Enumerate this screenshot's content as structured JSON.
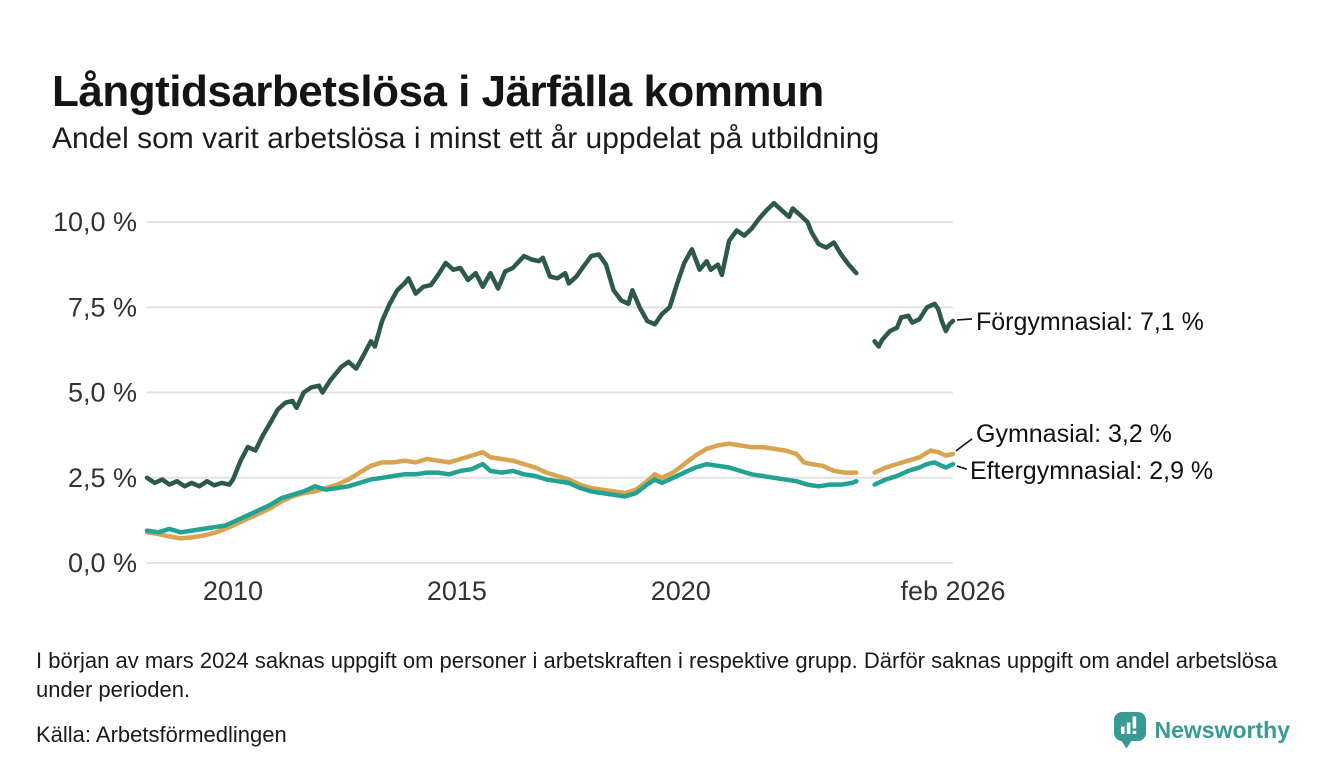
{
  "header": {
    "title": "Långtidsarbetslösa i Järfälla kommun",
    "subtitle": "Andel som varit arbetslösa i minst ett år uppdelat på utbildning"
  },
  "chart_data": {
    "type": "line",
    "title": "Långtidsarbetslösa i Järfälla kommun",
    "subtitle": "Andel som varit arbetslösa i minst ett år uppdelat på utbildning",
    "unit": "%",
    "grid": true,
    "legend_position": "right-end-labels",
    "x_range": [
      2008.08,
      2026.08
    ],
    "ylim": [
      0,
      10.7
    ],
    "y_ticks": [
      {
        "value": 10.0,
        "label": "10,0 %"
      },
      {
        "value": 7.5,
        "label": "7,5 %"
      },
      {
        "value": 5.0,
        "label": "5,0 %"
      },
      {
        "value": 2.5,
        "label": "2,5 %"
      },
      {
        "value": 0.0,
        "label": "0,0 %"
      }
    ],
    "x_ticks": [
      {
        "year": 2010,
        "label": "2010"
      },
      {
        "year": 2015,
        "label": "2015"
      },
      {
        "year": 2020,
        "label": "2020"
      },
      {
        "year": 2026.08,
        "label": "feb 2026"
      }
    ],
    "data_gap": "mars 2024",
    "series": [
      {
        "name": "Förgymnasial",
        "end_label": "Förgymnasial: 7,1 %",
        "end_value_pct": 7.1,
        "color": "#2d594b",
        "points": [
          [
            2008.08,
            2.5
          ],
          [
            2008.25,
            2.35
          ],
          [
            2008.42,
            2.45
          ],
          [
            2008.58,
            2.3
          ],
          [
            2008.75,
            2.4
          ],
          [
            2008.92,
            2.25
          ],
          [
            2009.08,
            2.35
          ],
          [
            2009.25,
            2.25
          ],
          [
            2009.42,
            2.4
          ],
          [
            2009.58,
            2.28
          ],
          [
            2009.75,
            2.35
          ],
          [
            2009.92,
            2.3
          ],
          [
            2010.0,
            2.45
          ],
          [
            2010.17,
            3.0
          ],
          [
            2010.33,
            3.4
          ],
          [
            2010.5,
            3.3
          ],
          [
            2010.67,
            3.75
          ],
          [
            2010.83,
            4.1
          ],
          [
            2011.0,
            4.5
          ],
          [
            2011.17,
            4.7
          ],
          [
            2011.33,
            4.75
          ],
          [
            2011.42,
            4.55
          ],
          [
            2011.58,
            5.0
          ],
          [
            2011.75,
            5.15
          ],
          [
            2011.92,
            5.2
          ],
          [
            2012.0,
            5.0
          ],
          [
            2012.17,
            5.35
          ],
          [
            2012.42,
            5.75
          ],
          [
            2012.58,
            5.9
          ],
          [
            2012.75,
            5.7
          ],
          [
            2012.92,
            6.1
          ],
          [
            2013.08,
            6.5
          ],
          [
            2013.17,
            6.35
          ],
          [
            2013.33,
            7.1
          ],
          [
            2013.5,
            7.6
          ],
          [
            2013.67,
            8.0
          ],
          [
            2013.83,
            8.2
          ],
          [
            2013.92,
            8.35
          ],
          [
            2014.08,
            7.9
          ],
          [
            2014.25,
            8.1
          ],
          [
            2014.42,
            8.15
          ],
          [
            2014.58,
            8.45
          ],
          [
            2014.75,
            8.8
          ],
          [
            2014.92,
            8.6
          ],
          [
            2015.08,
            8.65
          ],
          [
            2015.25,
            8.3
          ],
          [
            2015.42,
            8.5
          ],
          [
            2015.58,
            8.1
          ],
          [
            2015.75,
            8.5
          ],
          [
            2015.92,
            8.05
          ],
          [
            2016.08,
            8.55
          ],
          [
            2016.25,
            8.65
          ],
          [
            2016.5,
            9.0
          ],
          [
            2016.67,
            8.9
          ],
          [
            2016.83,
            8.85
          ],
          [
            2016.92,
            8.95
          ],
          [
            2017.08,
            8.4
          ],
          [
            2017.25,
            8.35
          ],
          [
            2017.42,
            8.5
          ],
          [
            2017.5,
            8.2
          ],
          [
            2017.67,
            8.4
          ],
          [
            2017.83,
            8.7
          ],
          [
            2018.0,
            9.0
          ],
          [
            2018.17,
            9.05
          ],
          [
            2018.33,
            8.75
          ],
          [
            2018.5,
            8.0
          ],
          [
            2018.67,
            7.7
          ],
          [
            2018.83,
            7.6
          ],
          [
            2018.92,
            8.0
          ],
          [
            2019.08,
            7.5
          ],
          [
            2019.25,
            7.1
          ],
          [
            2019.42,
            7.0
          ],
          [
            2019.58,
            7.3
          ],
          [
            2019.75,
            7.5
          ],
          [
            2019.92,
            8.2
          ],
          [
            2020.08,
            8.8
          ],
          [
            2020.25,
            9.2
          ],
          [
            2020.42,
            8.6
          ],
          [
            2020.58,
            8.85
          ],
          [
            2020.67,
            8.6
          ],
          [
            2020.83,
            8.75
          ],
          [
            2020.92,
            8.45
          ],
          [
            2021.08,
            9.45
          ],
          [
            2021.25,
            9.75
          ],
          [
            2021.42,
            9.6
          ],
          [
            2021.58,
            9.8
          ],
          [
            2021.75,
            10.1
          ],
          [
            2021.92,
            10.35
          ],
          [
            2022.08,
            10.55
          ],
          [
            2022.25,
            10.35
          ],
          [
            2022.42,
            10.15
          ],
          [
            2022.5,
            10.4
          ],
          [
            2022.67,
            10.2
          ],
          [
            2022.83,
            10.0
          ],
          [
            2022.92,
            9.7
          ],
          [
            2023.08,
            9.35
          ],
          [
            2023.25,
            9.25
          ],
          [
            2023.42,
            9.4
          ],
          [
            2023.58,
            9.05
          ],
          [
            2023.75,
            8.75
          ],
          [
            2023.92,
            8.5
          ],
          null,
          [
            2024.33,
            6.5
          ],
          [
            2024.42,
            6.35
          ],
          [
            2024.5,
            6.55
          ],
          [
            2024.67,
            6.8
          ],
          [
            2024.83,
            6.9
          ],
          [
            2024.92,
            7.2
          ],
          [
            2025.08,
            7.25
          ],
          [
            2025.17,
            7.05
          ],
          [
            2025.33,
            7.15
          ],
          [
            2025.5,
            7.5
          ],
          [
            2025.67,
            7.6
          ],
          [
            2025.75,
            7.45
          ],
          [
            2025.83,
            7.1
          ],
          [
            2025.92,
            6.8
          ],
          [
            2026.0,
            7.0
          ],
          [
            2026.08,
            7.1
          ]
        ]
      },
      {
        "name": "Gymnasial",
        "end_label": "Gymnasial: 3,2 %",
        "end_value_pct": 3.2,
        "color": "#d8a44f",
        "points": [
          [
            2008.08,
            0.9
          ],
          [
            2008.33,
            0.85
          ],
          [
            2008.58,
            0.78
          ],
          [
            2008.83,
            0.72
          ],
          [
            2009.08,
            0.75
          ],
          [
            2009.33,
            0.8
          ],
          [
            2009.58,
            0.88
          ],
          [
            2009.83,
            1.0
          ],
          [
            2010.08,
            1.15
          ],
          [
            2010.33,
            1.3
          ],
          [
            2010.58,
            1.45
          ],
          [
            2010.83,
            1.6
          ],
          [
            2011.08,
            1.8
          ],
          [
            2011.33,
            1.95
          ],
          [
            2011.58,
            2.05
          ],
          [
            2011.83,
            2.1
          ],
          [
            2012.08,
            2.2
          ],
          [
            2012.33,
            2.3
          ],
          [
            2012.58,
            2.45
          ],
          [
            2012.83,
            2.65
          ],
          [
            2013.08,
            2.85
          ],
          [
            2013.33,
            2.95
          ],
          [
            2013.58,
            2.95
          ],
          [
            2013.83,
            3.0
          ],
          [
            2014.08,
            2.95
          ],
          [
            2014.33,
            3.05
          ],
          [
            2014.58,
            3.0
          ],
          [
            2014.83,
            2.95
          ],
          [
            2015.08,
            3.05
          ],
          [
            2015.33,
            3.15
          ],
          [
            2015.58,
            3.25
          ],
          [
            2015.75,
            3.1
          ],
          [
            2016.0,
            3.05
          ],
          [
            2016.25,
            3.0
          ],
          [
            2016.5,
            2.9
          ],
          [
            2016.75,
            2.8
          ],
          [
            2017.0,
            2.65
          ],
          [
            2017.25,
            2.55
          ],
          [
            2017.5,
            2.45
          ],
          [
            2017.75,
            2.3
          ],
          [
            2018.0,
            2.2
          ],
          [
            2018.25,
            2.15
          ],
          [
            2018.5,
            2.1
          ],
          [
            2018.75,
            2.05
          ],
          [
            2019.0,
            2.15
          ],
          [
            2019.25,
            2.4
          ],
          [
            2019.42,
            2.6
          ],
          [
            2019.58,
            2.5
          ],
          [
            2019.83,
            2.65
          ],
          [
            2020.08,
            2.9
          ],
          [
            2020.33,
            3.15
          ],
          [
            2020.58,
            3.35
          ],
          [
            2020.83,
            3.45
          ],
          [
            2021.08,
            3.5
          ],
          [
            2021.33,
            3.45
          ],
          [
            2021.58,
            3.4
          ],
          [
            2021.83,
            3.4
          ],
          [
            2022.08,
            3.35
          ],
          [
            2022.33,
            3.3
          ],
          [
            2022.58,
            3.2
          ],
          [
            2022.75,
            2.95
          ],
          [
            2022.92,
            2.9
          ],
          [
            2023.17,
            2.85
          ],
          [
            2023.42,
            2.7
          ],
          [
            2023.67,
            2.65
          ],
          [
            2023.92,
            2.65
          ],
          null,
          [
            2024.33,
            2.65
          ],
          [
            2024.58,
            2.8
          ],
          [
            2024.83,
            2.9
          ],
          [
            2025.08,
            3.0
          ],
          [
            2025.33,
            3.1
          ],
          [
            2025.58,
            3.3
          ],
          [
            2025.75,
            3.25
          ],
          [
            2025.92,
            3.15
          ],
          [
            2026.08,
            3.2
          ]
        ]
      },
      {
        "name": "Eftergymnasial",
        "end_label": "Eftergymnasial: 2,9 %",
        "end_value_pct": 2.9,
        "color": "#23a292",
        "points": [
          [
            2008.08,
            0.95
          ],
          [
            2008.33,
            0.9
          ],
          [
            2008.58,
            1.0
          ],
          [
            2008.83,
            0.9
          ],
          [
            2009.08,
            0.95
          ],
          [
            2009.33,
            1.0
          ],
          [
            2009.58,
            1.05
          ],
          [
            2009.83,
            1.1
          ],
          [
            2010.08,
            1.25
          ],
          [
            2010.33,
            1.4
          ],
          [
            2010.58,
            1.55
          ],
          [
            2010.83,
            1.7
          ],
          [
            2011.08,
            1.9
          ],
          [
            2011.33,
            2.0
          ],
          [
            2011.58,
            2.1
          ],
          [
            2011.83,
            2.25
          ],
          [
            2012.08,
            2.15
          ],
          [
            2012.33,
            2.2
          ],
          [
            2012.58,
            2.25
          ],
          [
            2012.83,
            2.35
          ],
          [
            2013.08,
            2.45
          ],
          [
            2013.33,
            2.5
          ],
          [
            2013.58,
            2.55
          ],
          [
            2013.83,
            2.6
          ],
          [
            2014.08,
            2.6
          ],
          [
            2014.33,
            2.65
          ],
          [
            2014.58,
            2.65
          ],
          [
            2014.83,
            2.6
          ],
          [
            2015.08,
            2.7
          ],
          [
            2015.33,
            2.75
          ],
          [
            2015.58,
            2.9
          ],
          [
            2015.75,
            2.7
          ],
          [
            2016.0,
            2.65
          ],
          [
            2016.25,
            2.7
          ],
          [
            2016.5,
            2.6
          ],
          [
            2016.75,
            2.55
          ],
          [
            2017.0,
            2.45
          ],
          [
            2017.25,
            2.4
          ],
          [
            2017.5,
            2.35
          ],
          [
            2017.75,
            2.2
          ],
          [
            2018.0,
            2.1
          ],
          [
            2018.25,
            2.05
          ],
          [
            2018.5,
            2.0
          ],
          [
            2018.75,
            1.95
          ],
          [
            2019.0,
            2.05
          ],
          [
            2019.25,
            2.3
          ],
          [
            2019.42,
            2.45
          ],
          [
            2019.58,
            2.35
          ],
          [
            2019.83,
            2.5
          ],
          [
            2020.08,
            2.65
          ],
          [
            2020.33,
            2.8
          ],
          [
            2020.58,
            2.9
          ],
          [
            2020.83,
            2.85
          ],
          [
            2021.08,
            2.8
          ],
          [
            2021.33,
            2.7
          ],
          [
            2021.58,
            2.6
          ],
          [
            2021.83,
            2.55
          ],
          [
            2022.08,
            2.5
          ],
          [
            2022.33,
            2.45
          ],
          [
            2022.58,
            2.4
          ],
          [
            2022.83,
            2.3
          ],
          [
            2023.08,
            2.25
          ],
          [
            2023.33,
            2.3
          ],
          [
            2023.58,
            2.3
          ],
          [
            2023.83,
            2.35
          ],
          [
            2023.92,
            2.4
          ],
          null,
          [
            2024.33,
            2.3
          ],
          [
            2024.58,
            2.45
          ],
          [
            2024.83,
            2.55
          ],
          [
            2025.08,
            2.7
          ],
          [
            2025.33,
            2.8
          ],
          [
            2025.5,
            2.9
          ],
          [
            2025.67,
            2.95
          ],
          [
            2025.83,
            2.85
          ],
          [
            2025.92,
            2.8
          ],
          [
            2026.08,
            2.9
          ]
        ]
      }
    ]
  },
  "footnote": "I början av mars 2024 saknas uppgift om personer i arbetskraften i respektive grupp. Därför saknas uppgift om andel arbetslösa under perioden.",
  "source": "Källa: Arbetsförmedlingen",
  "branding": {
    "logo_text": "Newsworthy",
    "logo_color": "#399a94",
    "icon": "newsworthy-pin-barchart-icon"
  }
}
